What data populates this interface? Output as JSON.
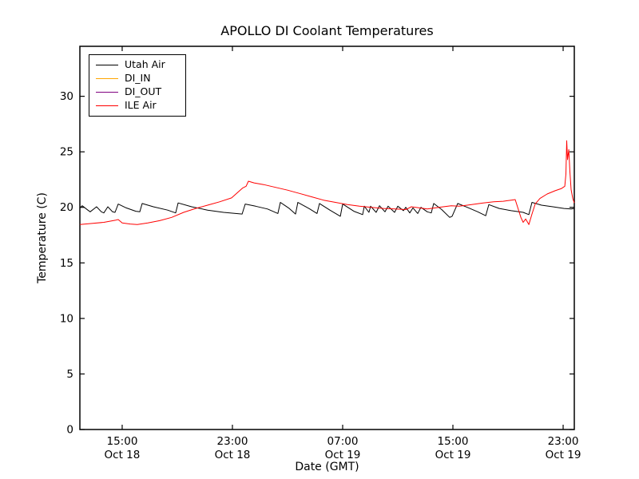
{
  "figure": {
    "title": "APOLLO DI Coolant Temperatures",
    "xlabel": "Date (GMT)",
    "ylabel": "Temperature (C)",
    "background_color": "#ffffff",
    "axis_color": "#000000"
  },
  "chart_data": {
    "type": "line",
    "title": "APOLLO DI Coolant Temperatures",
    "xlabel": "Date (GMT)",
    "ylabel": "Temperature (C)",
    "grid": false,
    "legend_position": "upper left",
    "x_unit": "hours since Oct 18 00:00 GMT",
    "xlim": [
      11.93,
      47.81
    ],
    "ylim": [
      0,
      34.5
    ],
    "yticks": [
      0,
      5,
      10,
      15,
      20,
      25,
      30
    ],
    "xticks": [
      {
        "t": 15,
        "line1": "15:00",
        "line2": "Oct 18"
      },
      {
        "t": 23,
        "line1": "23:00",
        "line2": "Oct 18"
      },
      {
        "t": 31,
        "line1": "07:00",
        "line2": "Oct 19"
      },
      {
        "t": 39,
        "line1": "15:00",
        "line2": "Oct 19"
      },
      {
        "t": 47,
        "line1": "23:00",
        "line2": "Oct 19"
      }
    ],
    "series": [
      {
        "name": "Utah Air",
        "color": "#000000",
        "points": [
          [
            11.93,
            19.95
          ],
          [
            12.1,
            20.15
          ],
          [
            12.51,
            19.75
          ],
          [
            12.68,
            19.6
          ],
          [
            13.14,
            20.05
          ],
          [
            13.49,
            19.6
          ],
          [
            13.67,
            19.5
          ],
          [
            13.96,
            20.05
          ],
          [
            14.3,
            19.6
          ],
          [
            14.48,
            19.55
          ],
          [
            14.71,
            20.3
          ],
          [
            15.29,
            19.95
          ],
          [
            15.99,
            19.65
          ],
          [
            16.28,
            19.6
          ],
          [
            16.45,
            20.35
          ],
          [
            17.26,
            20.05
          ],
          [
            18.3,
            19.75
          ],
          [
            18.88,
            19.5
          ],
          [
            19.06,
            20.4
          ],
          [
            20.04,
            20.05
          ],
          [
            21.2,
            19.75
          ],
          [
            22.36,
            19.55
          ],
          [
            23.7,
            19.4
          ],
          [
            23.93,
            20.3
          ],
          [
            24.68,
            20.1
          ],
          [
            25.55,
            19.85
          ],
          [
            26.3,
            19.45
          ],
          [
            26.48,
            20.45
          ],
          [
            27.12,
            19.9
          ],
          [
            27.58,
            19.4
          ],
          [
            27.75,
            20.45
          ],
          [
            28.62,
            19.85
          ],
          [
            29.14,
            19.45
          ],
          [
            29.32,
            20.35
          ],
          [
            30.07,
            19.75
          ],
          [
            30.83,
            19.2
          ],
          [
            31.0,
            20.3
          ],
          [
            31.81,
            19.65
          ],
          [
            32.45,
            19.35
          ],
          [
            32.57,
            20.1
          ],
          [
            32.91,
            19.55
          ],
          [
            33.03,
            20.1
          ],
          [
            33.43,
            19.55
          ],
          [
            33.67,
            20.15
          ],
          [
            34.07,
            19.6
          ],
          [
            34.3,
            20.1
          ],
          [
            34.77,
            19.55
          ],
          [
            35.0,
            20.1
          ],
          [
            35.41,
            19.7
          ],
          [
            35.58,
            20.0
          ],
          [
            35.87,
            19.5
          ],
          [
            36.1,
            19.95
          ],
          [
            36.45,
            19.45
          ],
          [
            36.68,
            20.0
          ],
          [
            37.14,
            19.6
          ],
          [
            37.43,
            19.5
          ],
          [
            37.61,
            20.35
          ],
          [
            38.19,
            19.8
          ],
          [
            38.77,
            19.1
          ],
          [
            38.94,
            19.2
          ],
          [
            39.35,
            20.35
          ],
          [
            40.04,
            20.0
          ],
          [
            40.8,
            19.6
          ],
          [
            41.38,
            19.25
          ],
          [
            41.61,
            20.25
          ],
          [
            42.36,
            19.9
          ],
          [
            43.23,
            19.7
          ],
          [
            44.1,
            19.55
          ],
          [
            44.51,
            19.35
          ],
          [
            44.74,
            20.45
          ],
          [
            45.43,
            20.2
          ],
          [
            46.25,
            20.05
          ],
          [
            47.06,
            19.9
          ],
          [
            47.58,
            19.85
          ],
          [
            47.81,
            19.9
          ]
        ]
      },
      {
        "name": "DI_IN",
        "color": "#ffa500",
        "points": []
      },
      {
        "name": "DI_OUT",
        "color": "#800080",
        "points": []
      },
      {
        "name": "ILE Air",
        "color": "#ff0000",
        "points": [
          [
            11.93,
            18.45
          ],
          [
            12.8,
            18.55
          ],
          [
            13.67,
            18.65
          ],
          [
            14.54,
            18.85
          ],
          [
            14.71,
            18.9
          ],
          [
            15.0,
            18.6
          ],
          [
            15.58,
            18.5
          ],
          [
            16.1,
            18.45
          ],
          [
            16.86,
            18.6
          ],
          [
            17.72,
            18.8
          ],
          [
            18.59,
            19.1
          ],
          [
            19.46,
            19.55
          ],
          [
            20.33,
            19.9
          ],
          [
            21.2,
            20.2
          ],
          [
            22.07,
            20.5
          ],
          [
            22.94,
            20.85
          ],
          [
            23.52,
            21.5
          ],
          [
            23.75,
            21.75
          ],
          [
            23.99,
            21.9
          ],
          [
            24.16,
            22.35
          ],
          [
            24.57,
            22.2
          ],
          [
            25.26,
            22.05
          ],
          [
            26.13,
            21.8
          ],
          [
            27.0,
            21.55
          ],
          [
            27.87,
            21.25
          ],
          [
            28.74,
            20.95
          ],
          [
            29.61,
            20.65
          ],
          [
            30.48,
            20.45
          ],
          [
            31.35,
            20.25
          ],
          [
            32.22,
            20.1
          ],
          [
            33.09,
            20.0
          ],
          [
            33.96,
            19.9
          ],
          [
            34.83,
            19.85
          ],
          [
            35.58,
            19.8
          ],
          [
            35.99,
            20.05
          ],
          [
            36.57,
            19.95
          ],
          [
            37.14,
            19.85
          ],
          [
            37.72,
            19.95
          ],
          [
            38.3,
            20.05
          ],
          [
            38.88,
            20.15
          ],
          [
            39.46,
            20.1
          ],
          [
            40.04,
            20.2
          ],
          [
            40.62,
            20.3
          ],
          [
            41.2,
            20.4
          ],
          [
            41.96,
            20.5
          ],
          [
            42.65,
            20.55
          ],
          [
            43.23,
            20.65
          ],
          [
            43.52,
            20.7
          ],
          [
            43.75,
            19.8
          ],
          [
            43.93,
            19.1
          ],
          [
            44.1,
            18.65
          ],
          [
            44.28,
            18.95
          ],
          [
            44.51,
            18.45
          ],
          [
            44.74,
            19.4
          ],
          [
            44.97,
            20.3
          ],
          [
            45.32,
            20.8
          ],
          [
            45.84,
            21.2
          ],
          [
            46.42,
            21.5
          ],
          [
            46.88,
            21.7
          ],
          [
            47.12,
            21.9
          ],
          [
            47.2,
            23.0
          ],
          [
            47.26,
            26.0
          ],
          [
            47.32,
            24.3
          ],
          [
            47.41,
            25.2
          ],
          [
            47.49,
            23.2
          ],
          [
            47.58,
            21.6
          ],
          [
            47.7,
            20.8
          ],
          [
            47.81,
            20.4
          ]
        ]
      }
    ]
  }
}
